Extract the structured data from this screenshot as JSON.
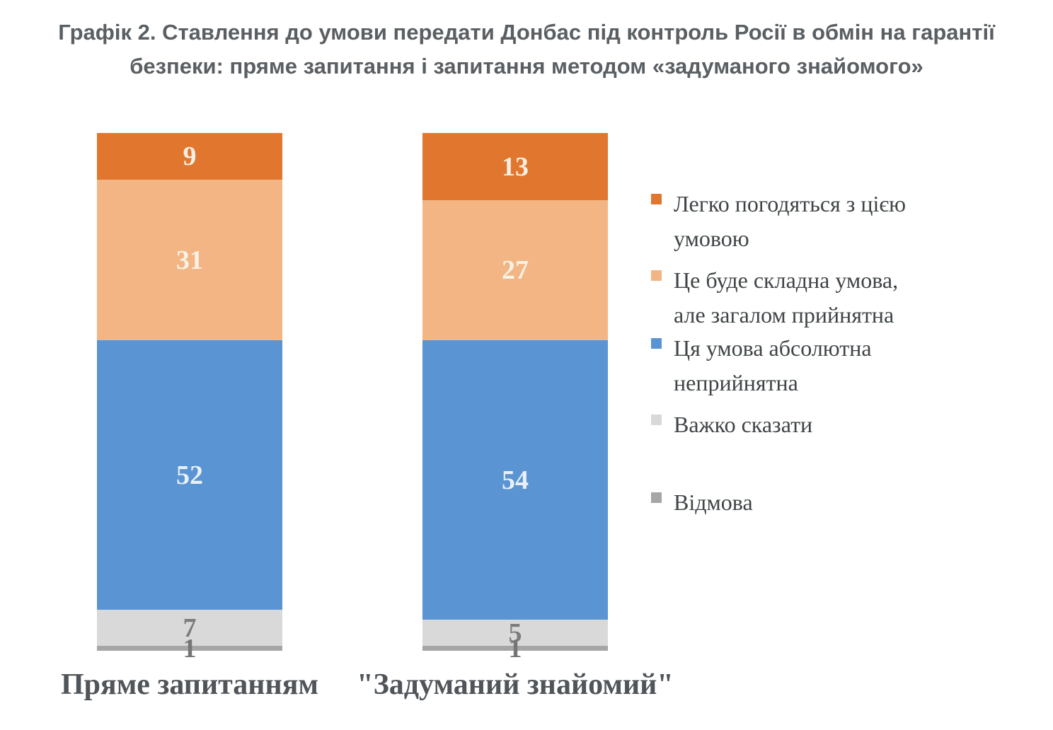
{
  "title": {
    "line1": "Графік 2. Ставлення до умови передати Донбас під контроль Росії в обмін на гарантії",
    "line2": "безпеки: пряме запитання і запитання методом «задуманого знайомого»"
  },
  "chart_data": {
    "type": "bar",
    "subtype": "stacked-vertical-100",
    "title": "Графік 2. Ставлення до умови передати Донбас під контроль Росії в обмін на гарантії безпеки: пряме запитання і запитання методом «задуманого знайомого»",
    "categories": [
      "Пряме запитанням",
      "\"Задуманий знайомий\""
    ],
    "series": [
      {
        "name": "Легко погодяться з цією умовою",
        "color": "#e1772f",
        "label_color": "#f5f0e3",
        "values": [
          9,
          13
        ]
      },
      {
        "name": "Це буде складна умова, але загалом прийнятна",
        "color": "#f2b583",
        "label_color": "#f7f2e6",
        "values": [
          31,
          27
        ]
      },
      {
        "name": "Ця умова абсолютна неприйнятна",
        "color": "#5b94d2",
        "label_color": "#e9f0f7",
        "values": [
          52,
          54
        ]
      },
      {
        "name": "Важко сказати",
        "color": "#d9d9d9",
        "label_color": "#7c7c7c",
        "values": [
          7,
          5
        ]
      },
      {
        "name": "Відмова",
        "color": "#a6a6a6",
        "label_color": "#757575",
        "values": [
          1,
          1
        ]
      }
    ],
    "ylim": [
      0,
      100
    ],
    "grid": false,
    "axes_visible": false,
    "data_labels": true,
    "legend_position": "right"
  },
  "legend": {
    "items": [
      {
        "label": "Легко погодяться з цією\nумовою"
      },
      {
        "label": "Це буде складна умова,\nале загалом прийнятна"
      },
      {
        "label": "Ця умова абсолютна\nнеприйнятна"
      },
      {
        "label": "Важко сказати"
      },
      {
        "label": "Відмова"
      }
    ]
  }
}
